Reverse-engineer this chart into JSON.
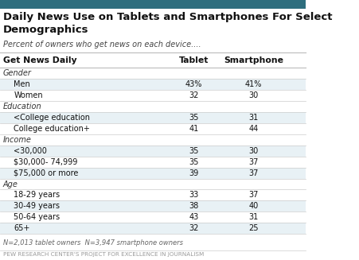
{
  "title": "Daily News Use on Tablets and Smartphones For Select\nDemographics",
  "subtitle": "Percent of owners who get news on each device....",
  "col_header": [
    "Get News Daily",
    "Tablet",
    "Smartphone"
  ],
  "rows": [
    {
      "label": "Gender",
      "category": true,
      "tablet": null,
      "smartphone": null
    },
    {
      "label": "Men",
      "category": false,
      "tablet": "43%",
      "smartphone": "41%",
      "indent": true
    },
    {
      "label": "Women",
      "category": false,
      "tablet": "32",
      "smartphone": "30",
      "indent": true
    },
    {
      "label": "Education",
      "category": true,
      "tablet": null,
      "smartphone": null
    },
    {
      "label": "<College education",
      "category": false,
      "tablet": "35",
      "smartphone": "31",
      "indent": true
    },
    {
      "label": "College education+",
      "category": false,
      "tablet": "41",
      "smartphone": "44",
      "indent": true
    },
    {
      "label": "Income",
      "category": true,
      "tablet": null,
      "smartphone": null
    },
    {
      "label": "<30,000",
      "category": false,
      "tablet": "35",
      "smartphone": "30",
      "indent": true
    },
    {
      "label": "$30,000- 74,999",
      "category": false,
      "tablet": "35",
      "smartphone": "37",
      "indent": true
    },
    {
      "label": "$75,000 or more",
      "category": false,
      "tablet": "39",
      "smartphone": "37",
      "indent": true
    },
    {
      "label": "Age",
      "category": true,
      "tablet": null,
      "smartphone": null
    },
    {
      "label": "18-29 years",
      "category": false,
      "tablet": "33",
      "smartphone": "37",
      "indent": true
    },
    {
      "label": "30-49 years",
      "category": false,
      "tablet": "38",
      "smartphone": "40",
      "indent": true
    },
    {
      "label": "50-64 years",
      "category": false,
      "tablet": "43",
      "smartphone": "31",
      "indent": true
    },
    {
      "label": "65+",
      "category": false,
      "tablet": "32",
      "smartphone": "25",
      "indent": true
    }
  ],
  "footnote": "N=2,013 tablet owners  N=3,947 smartphone owners",
  "source": "PEW RESEARCH CENTER'S PROJECT FOR EXCELLENCE IN JOURNALISM",
  "top_bar_color": "#2E6E7E",
  "row_bg_even": "#E8F1F5",
  "row_bg_odd": "#FFFFFF",
  "border_color": "#CCCCCC"
}
